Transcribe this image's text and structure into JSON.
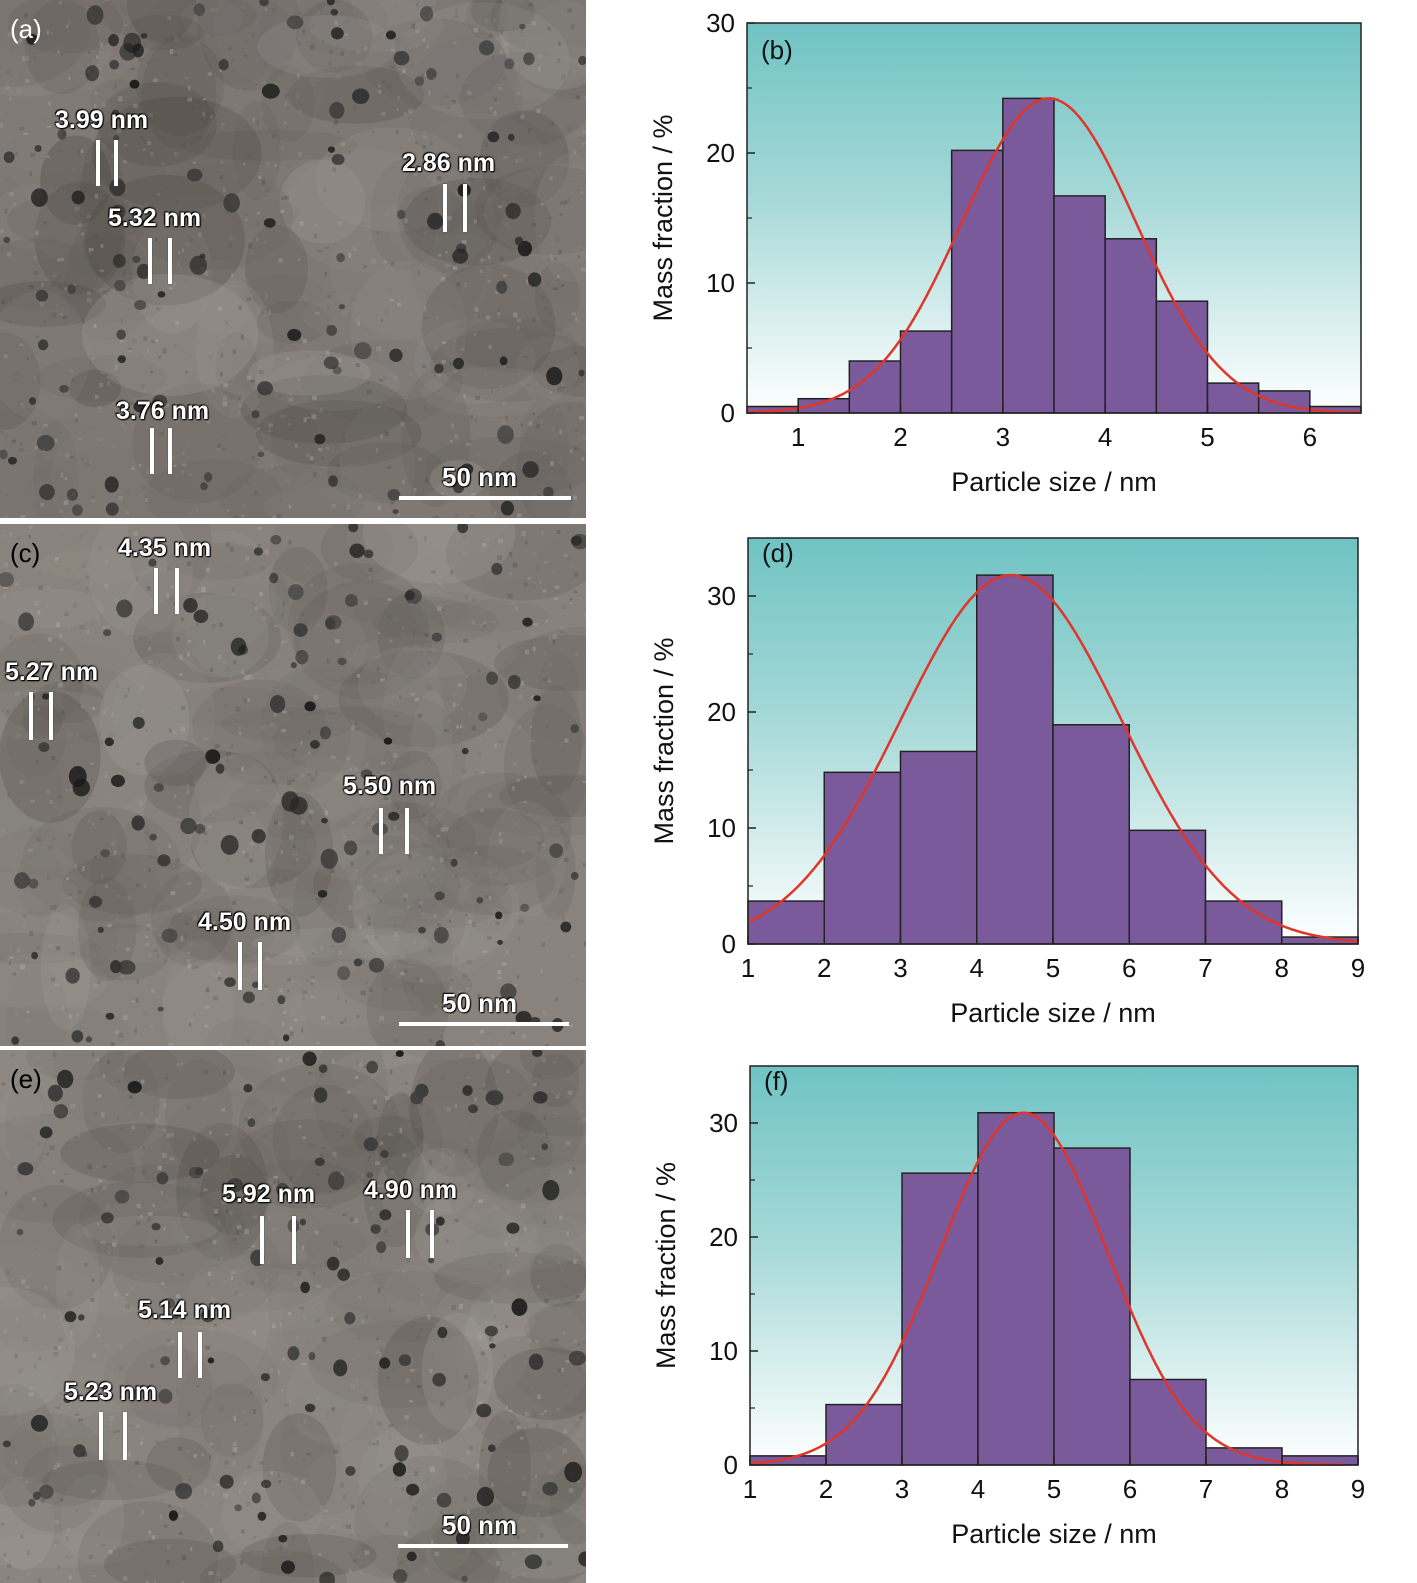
{
  "panels": [
    {
      "id": "a",
      "label": "(a)",
      "scale": "50 nm",
      "measurements": [
        "3.99 nm",
        "2.86 nm",
        "5.32 nm",
        "3.76 nm"
      ],
      "base_color": "#7f7873"
    },
    {
      "id": "c",
      "label": "(c)",
      "scale": "50 nm",
      "measurements": [
        "4.35 nm",
        "5.27 nm",
        "5.50 nm",
        "4.50 nm"
      ],
      "base_color": "#8a837d"
    },
    {
      "id": "e",
      "label": "(e)",
      "scale": "50 nm",
      "measurements": [
        "5.92 nm",
        "4.90 nm",
        "5.14 nm",
        "5.23 nm"
      ],
      "base_color": "#8c857f"
    }
  ],
  "chart_data": [
    {
      "type": "bar",
      "panel_label": "(b)",
      "xlabel": "Particle size / nm",
      "ylabel": "Mass fraction / %",
      "xlim": [
        0.5,
        6.5
      ],
      "ylim": [
        0,
        30
      ],
      "xticks": [
        1,
        2,
        3,
        4,
        5,
        6
      ],
      "yticks": [
        0,
        10,
        20,
        30
      ],
      "bin_width": 0.5,
      "bin_starts": [
        0.5,
        1.0,
        1.5,
        2.0,
        2.5,
        3.0,
        3.5,
        4.0,
        4.5,
        5.0,
        5.5,
        6.0
      ],
      "values": [
        0.5,
        1.1,
        4.0,
        6.3,
        20.2,
        24.2,
        16.7,
        13.4,
        8.6,
        2.3,
        1.7,
        0.5
      ],
      "fit": {
        "type": "gaussian",
        "center": 3.45,
        "amplitude": 24.2,
        "sigma": 0.85
      },
      "bar_color": "#7b5a9c",
      "fit_color": "#e0352b"
    },
    {
      "type": "bar",
      "panel_label": "(d)",
      "xlabel": "Particle size / nm",
      "ylabel": "Mass fraction / %",
      "xlim": [
        1,
        9
      ],
      "ylim": [
        0,
        35
      ],
      "xticks": [
        1,
        2,
        3,
        4,
        5,
        6,
        7,
        8,
        9
      ],
      "yticks": [
        0,
        10,
        20,
        30
      ],
      "bin_width": 1,
      "bin_starts": [
        1,
        2,
        3,
        4,
        5,
        6,
        7,
        8
      ],
      "values": [
        3.7,
        14.8,
        16.6,
        31.8,
        18.9,
        9.8,
        3.7,
        0.6
      ],
      "fit": {
        "type": "gaussian",
        "center": 4.45,
        "amplitude": 31.8,
        "sigma": 1.45
      },
      "bar_color": "#7b5a9c",
      "fit_color": "#e0352b"
    },
    {
      "type": "bar",
      "panel_label": "(f)",
      "xlabel": "Particle size / nm",
      "ylabel": "Mass fraction / %",
      "xlim": [
        1,
        9
      ],
      "ylim": [
        0,
        35
      ],
      "xticks": [
        1,
        2,
        3,
        4,
        5,
        6,
        7,
        8,
        9
      ],
      "yticks": [
        0,
        10,
        20,
        30
      ],
      "bin_width": 1,
      "bin_starts": [
        1,
        2,
        3,
        4,
        5,
        6,
        7,
        8
      ],
      "values": [
        0.8,
        5.3,
        25.6,
        30.9,
        27.8,
        7.5,
        1.5,
        0.8
      ],
      "fit": {
        "type": "gaussian",
        "center": 4.6,
        "amplitude": 30.9,
        "sigma": 1.1
      },
      "bar_color": "#7b5a9c",
      "fit_color": "#e0352b"
    }
  ]
}
